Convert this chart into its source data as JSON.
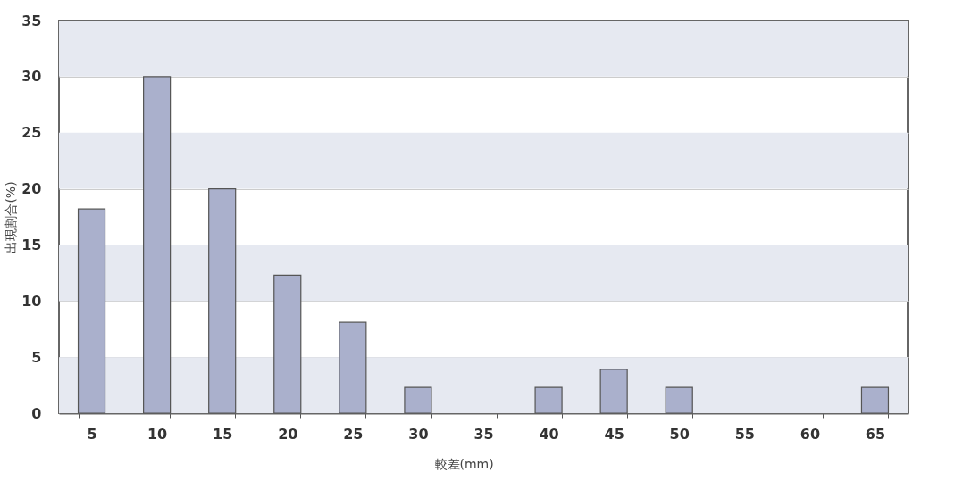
{
  "chart_data": {
    "type": "bar",
    "xlabel": "較差(mm)",
    "ylabel": "出現割合(%)",
    "categories": [
      "5",
      "10",
      "15",
      "20",
      "25",
      "30",
      "35",
      "40",
      "45",
      "50",
      "55",
      "60",
      "65"
    ],
    "values": [
      18.2,
      30,
      20,
      12.3,
      8.1,
      2.3,
      0,
      2.3,
      3.9,
      2.3,
      0,
      0,
      2.3
    ],
    "color": "#aab0cc",
    "ylim": [
      0,
      35
    ],
    "yticks": [
      0,
      5,
      10,
      15,
      20,
      25,
      30,
      35
    ],
    "grid": "y"
  }
}
